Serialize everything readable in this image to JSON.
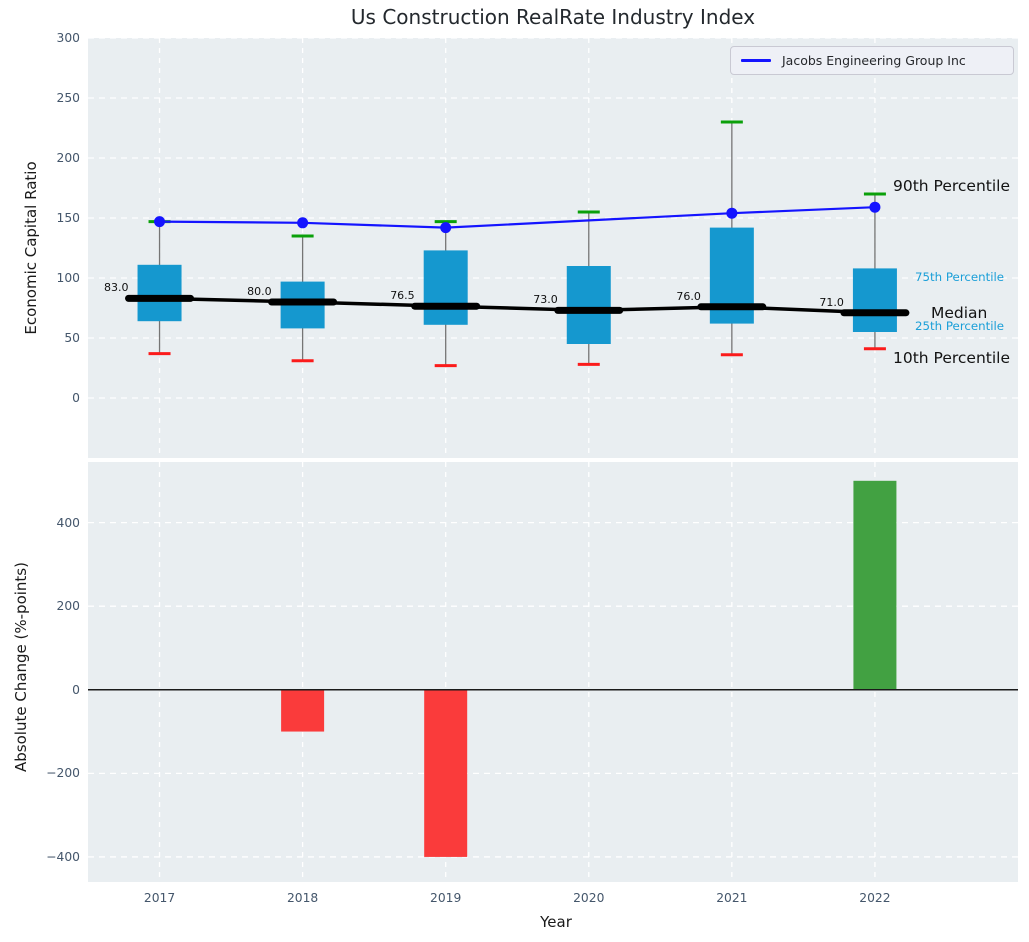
{
  "colors": {
    "axes_bg": "#e9eef1",
    "grid": "#ffffff",
    "tick_text": "#44566b",
    "title_text": "#24292e",
    "box_fill": "#1598cf",
    "cyan_text": "#1b9fd8",
    "whisker": "#757575",
    "cap_green": "#0aa00a",
    "cap_red": "#fb1b1b",
    "jacobs_line": "#1414ff",
    "median_line": "#000000",
    "bar_negative": "#fa3b3b",
    "bar_positive": "#42a142",
    "zero_line": "#1a1a1a"
  },
  "legend": {
    "label": "Jacobs Engineering Group Inc"
  },
  "chart_data": [
    {
      "type": "boxplot-percentiles-with-line",
      "title": "Us Construction RealRate Industry Index",
      "ylabel": "Economic Capital Ratio",
      "categories": [
        "2017",
        "2018",
        "2019",
        "2020",
        "2021",
        "2022"
      ],
      "yticks": [
        0,
        50,
        100,
        150,
        200,
        250,
        300
      ],
      "ylim": [
        -50,
        300
      ],
      "grid": true,
      "legend": {
        "label": "Jacobs Engineering Group Inc",
        "position": "upper right"
      },
      "series": {
        "p10": [
          37,
          31,
          27,
          28,
          36,
          41
        ],
        "p25": [
          64,
          58,
          61,
          45,
          62,
          55
        ],
        "median": [
          83.0,
          80.0,
          76.5,
          73.0,
          76.0,
          71.0
        ],
        "p75": [
          111,
          97,
          123,
          110,
          142,
          108
        ],
        "p90": [
          147,
          135,
          147,
          155,
          230,
          170
        ],
        "jacobs_engineering_group_inc": [
          147,
          146,
          142,
          null,
          154,
          159
        ]
      },
      "median_labels": [
        "83.0",
        "80.0",
        "76.5",
        "73.0",
        "76.0",
        "71.0"
      ],
      "annotations": [
        {
          "text": "90th Percentile",
          "tone": "dark"
        },
        {
          "text": "75th Percentile",
          "tone": "cyan"
        },
        {
          "text": "Median",
          "tone": "dark"
        },
        {
          "text": "25th Percentile",
          "tone": "cyan"
        },
        {
          "text": "10th Percentile",
          "tone": "dark"
        }
      ]
    },
    {
      "type": "bar",
      "ylabel": "Absolute Change (%-points)",
      "xlabel": "Year",
      "categories": [
        "2017",
        "2018",
        "2019",
        "2020",
        "2021",
        "2022"
      ],
      "values": [
        0,
        -100,
        -400,
        0,
        0,
        500
      ],
      "yticks": [
        -400,
        -200,
        0,
        200,
        400
      ],
      "ylim": [
        -460,
        545
      ],
      "grid": true,
      "bar_color_rule": "red if negative, green if positive, none if zero"
    }
  ]
}
